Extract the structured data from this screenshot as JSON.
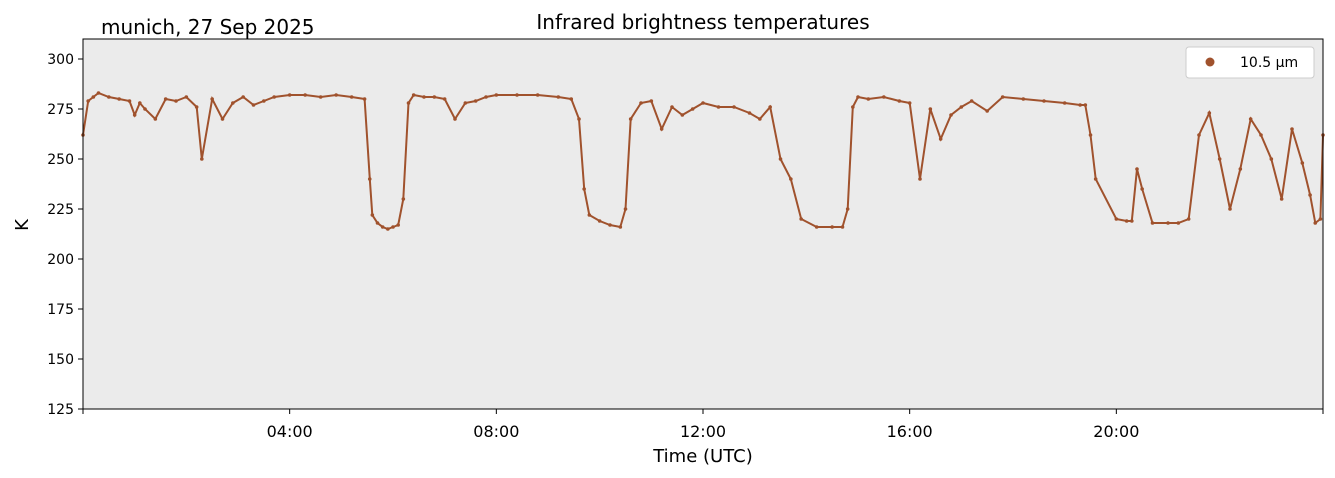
{
  "chart_data": {
    "type": "scatter",
    "title": "Infrared brightness temperatures",
    "corner_label": "munich, 27 Sep 2025",
    "xlabel": "Time (UTC)",
    "ylabel": "K",
    "xlim_hours": [
      0,
      24
    ],
    "ylim": [
      125,
      310
    ],
    "yticks": [
      125,
      150,
      175,
      200,
      225,
      250,
      275,
      300
    ],
    "xticks": [
      {
        "hour": 4,
        "label": "04:00"
      },
      {
        "hour": 8,
        "label": "08:00"
      },
      {
        "hour": 12,
        "label": "12:00"
      },
      {
        "hour": 16,
        "label": "16:00"
      },
      {
        "hour": 20,
        "label": "20:00"
      }
    ],
    "grid": false,
    "legend_position": "top-right",
    "series": [
      {
        "name": "10.5 µm",
        "color": "#a0522d",
        "x_hours": [
          0.0,
          0.1,
          0.2,
          0.3,
          0.5,
          0.7,
          0.9,
          1.0,
          1.1,
          1.2,
          1.4,
          1.6,
          1.8,
          2.0,
          2.2,
          2.3,
          2.5,
          2.7,
          2.9,
          3.1,
          3.3,
          3.5,
          3.7,
          4.0,
          4.3,
          4.6,
          4.9,
          5.2,
          5.45,
          5.55,
          5.6,
          5.7,
          5.8,
          5.9,
          6.0,
          6.1,
          6.2,
          6.3,
          6.4,
          6.6,
          6.8,
          7.0,
          7.2,
          7.4,
          7.6,
          7.8,
          8.0,
          8.4,
          8.8,
          9.2,
          9.45,
          9.6,
          9.7,
          9.8,
          10.0,
          10.2,
          10.4,
          10.5,
          10.6,
          10.8,
          11.0,
          11.2,
          11.4,
          11.6,
          11.8,
          12.0,
          12.3,
          12.6,
          12.9,
          13.1,
          13.3,
          13.5,
          13.7,
          13.9,
          14.2,
          14.5,
          14.7,
          14.8,
          14.9,
          15.0,
          15.2,
          15.5,
          15.8,
          16.0,
          16.2,
          16.4,
          16.6,
          16.8,
          17.0,
          17.2,
          17.5,
          17.8,
          18.2,
          18.6,
          19.0,
          19.3,
          19.4,
          19.5,
          19.6,
          20.0,
          20.2,
          20.3,
          20.4,
          20.5,
          20.7,
          21.0,
          21.2,
          21.4,
          21.6,
          21.8,
          22.0,
          22.2,
          22.4,
          22.6,
          22.8,
          23.0,
          23.2,
          23.4,
          23.6,
          23.75,
          23.85,
          23.95,
          24.0
        ],
        "values": [
          262,
          279,
          281,
          283,
          281,
          280,
          279,
          272,
          278,
          275,
          270,
          280,
          279,
          281,
          276,
          250,
          280,
          270,
          278,
          281,
          277,
          279,
          281,
          282,
          282,
          281,
          282,
          281,
          280,
          240,
          222,
          218,
          216,
          215,
          216,
          217,
          230,
          278,
          282,
          281,
          281,
          280,
          270,
          278,
          279,
          281,
          282,
          282,
          282,
          281,
          280,
          270,
          235,
          222,
          219,
          217,
          216,
          225,
          270,
          278,
          279,
          265,
          276,
          272,
          275,
          278,
          276,
          276,
          273,
          270,
          276,
          250,
          240,
          220,
          216,
          216,
          216,
          225,
          276,
          281,
          280,
          281,
          279,
          278,
          240,
          275,
          260,
          272,
          276,
          279,
          274,
          281,
          280,
          279,
          278,
          277,
          277,
          262,
          240,
          220,
          219,
          219,
          245,
          235,
          218,
          218,
          218,
          220,
          262,
          273,
          250,
          225,
          245,
          270,
          262,
          250,
          230,
          265,
          248,
          232,
          218,
          220,
          262
        ]
      }
    ]
  }
}
